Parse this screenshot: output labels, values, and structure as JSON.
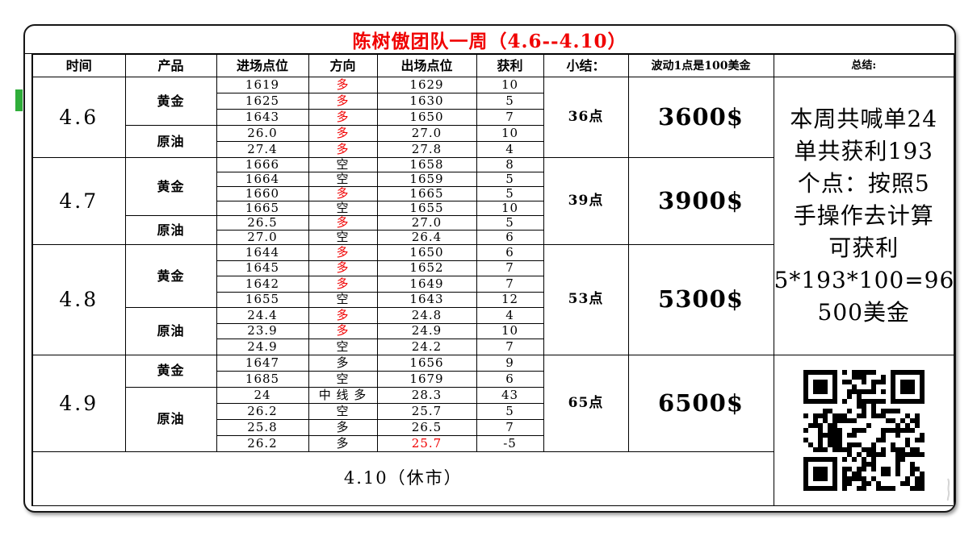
{
  "colors": {
    "red": "#f00000",
    "green_artifact": "#2fae3a"
  },
  "title": {
    "text": "陈树傲团队一周（4.6--4.10）"
  },
  "headers": {
    "time": "时间",
    "product": "产品",
    "entry": "进场点位",
    "direction": "方向",
    "exit": "出场点位",
    "profit": "获利",
    "summary": "小结：",
    "note": "波动1点是100美金",
    "conclusion": "总结:"
  },
  "days": [
    {
      "date": "4.6",
      "points": "36点",
      "money": "3600$",
      "products": [
        {
          "name": "黄金",
          "rows": [
            {
              "entry": "1619",
              "dir": "多",
              "exit": "1629",
              "profit": "10"
            },
            {
              "entry": "1625",
              "dir": "多",
              "exit": "1630",
              "profit": "5"
            },
            {
              "entry": "1643",
              "dir": "多",
              "exit": "1650",
              "profit": "7"
            }
          ]
        },
        {
          "name": "原油",
          "rows": [
            {
              "entry": "26.0",
              "dir": "多",
              "exit": "27.0",
              "profit": "10"
            },
            {
              "entry": "27.4",
              "dir": "多",
              "exit": "27.8",
              "profit": "4"
            }
          ]
        }
      ]
    },
    {
      "date": "4.7",
      "points": "39点",
      "money": "3900$",
      "products": [
        {
          "name": "黄金",
          "rows": [
            {
              "entry": "1666",
              "dir": "空",
              "exit": "1658",
              "profit": "8"
            },
            {
              "entry": "1664",
              "dir": "空",
              "exit": "1659",
              "profit": "5"
            },
            {
              "entry": "1660",
              "dir": "多",
              "exit": "1665",
              "profit": "5"
            },
            {
              "entry": "1665",
              "dir": "空",
              "exit": "1655",
              "profit": "10"
            }
          ]
        },
        {
          "name": "原油",
          "rows": [
            {
              "entry": "26.5",
              "dir": "多",
              "exit": "27.0",
              "profit": "5"
            },
            {
              "entry": "27.0",
              "dir": "空",
              "exit": "26.4",
              "profit": "6"
            }
          ]
        }
      ]
    },
    {
      "date": "4.8",
      "points": "53点",
      "money": "5300$",
      "products": [
        {
          "name": "黄金",
          "rows": [
            {
              "entry": "1644",
              "dir": "多",
              "exit": "1650",
              "profit": "6"
            },
            {
              "entry": "1645",
              "dir": "多",
              "exit": "1652",
              "profit": "7"
            },
            {
              "entry": "1642",
              "dir": "多",
              "exit": "1649",
              "profit": "7"
            },
            {
              "entry": "1655",
              "dir": "空",
              "exit": "1643",
              "profit": "12"
            }
          ]
        },
        {
          "name": "原油",
          "rows": [
            {
              "entry": "24.4",
              "dir": "多",
              "exit": "24.8",
              "profit": "4"
            },
            {
              "entry": "23.9",
              "dir": "多",
              "exit": "24.9",
              "profit": "10"
            },
            {
              "entry": "24.9",
              "dir": "空",
              "exit": "24.2",
              "profit": "7"
            }
          ]
        }
      ]
    },
    {
      "date": "4.9",
      "points": "65点",
      "money": "6500$",
      "products": [
        {
          "name": "黄金",
          "rows": [
            {
              "entry": "1647",
              "dir": "多",
              "exit": "1656",
              "profit": "9"
            },
            {
              "entry": "1685",
              "dir": "空",
              "exit": "1679",
              "profit": "6"
            }
          ]
        },
        {
          "name": "原油",
          "rows": [
            {
              "entry": "24",
              "dir": "中 线 多",
              "exit": "28.3",
              "profit": "43"
            },
            {
              "entry": "26.2",
              "dir": "空",
              "exit": "25.7",
              "profit": "5"
            },
            {
              "entry": "25.8",
              "dir": "多",
              "exit": "26.5",
              "profit": "7"
            },
            {
              "entry": "26.2",
              "dir": "多",
              "exit": "25.7",
              "profit": "-5"
            }
          ]
        }
      ]
    }
  ],
  "footer": {
    "label": "4.10（休市）"
  },
  "conclusion": {
    "lines": [
      "本周共喊单24",
      "单共获利193",
      "个点：按照5",
      "手操作去计算",
      "可获利",
      "5*193*100=96",
      "500美金"
    ]
  }
}
